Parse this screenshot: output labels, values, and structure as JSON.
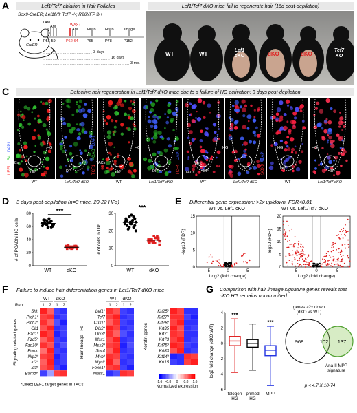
{
  "panel_letters": [
    "A",
    "C",
    "D",
    "E",
    "F",
    "G"
  ],
  "panelA": {
    "title_left": "Lef1/Tcf7 ablation in Hair Follicles",
    "title_right": "Lef1/Tcf7 dKO mice fail to regenerate hair (16d post-depilation)",
    "genotype": "Sox9-CreER; Lef1fl/fl; Tcf7 -/-; R26YFP fl/+",
    "mouse_label": "CreER",
    "tam_label": "TAM",
    "timeline_labels": [
      "TAM",
      "TAM",
      "WAX+",
      "TAM",
      "Histo",
      "Histo",
      "Image"
    ],
    "timeline_days": [
      "P55-59",
      "P62-64",
      "P65",
      "P78",
      "P152"
    ],
    "durations": [
      "3 days",
      "16 days",
      "3 mo."
    ],
    "mice": [
      "WT",
      "WT",
      "Lef1 cKO",
      "dKO",
      "dKO",
      "Tcf7 KO"
    ],
    "mice_colors": [
      "#ffffff",
      "#ffffff",
      "#ffffff",
      "#e02020",
      "#e02020",
      "#ffffff"
    ]
  },
  "panelC": {
    "title": "Defective hair regeneration in Lef1/Tcf7 dKO mice due to a failure of HG activation: 3 days post-depilation",
    "stain_labels": [
      {
        "text": "LEF1",
        "color": "#ff3030"
      },
      {
        "text": "B4",
        "color": "#40d040"
      },
      {
        "text": "DAPI",
        "color": "#4060ff"
      },
      {
        "text": "TCF1",
        "color": "#ff3030"
      },
      {
        "text": "PCAD",
        "color": "#40d040"
      },
      {
        "text": "DAPI",
        "color": "#4060ff"
      },
      {
        "text": "TCF4",
        "color": "#ff3030"
      },
      {
        "text": "DAPI",
        "color": "#4060ff"
      },
      {
        "text": "SOX9",
        "color": "#ff3030"
      },
      {
        "text": "DAPI",
        "color": "#4060ff"
      }
    ],
    "image_annotations": [
      "TACs",
      "DP",
      "HG",
      "DP",
      "TACs",
      "DP",
      "HG",
      "DP",
      "ORS",
      "DP",
      "TACs",
      "HG",
      "DP",
      "HG",
      "DP",
      "HG",
      "DP"
    ],
    "captions": [
      "WT",
      "Lef1/Tcf7 dKO",
      "WT",
      "Lef1/Tcf7 dKO",
      "WT",
      "Lef1/Tcf7 dKO",
      "WT",
      "Lef1/Tcf7 dKO"
    ]
  },
  "panelD": {
    "title": "3 days post-depilation (n=3 mice, 20-22 HFs)",
    "significance": "***",
    "plot1_ylabel": "# of PCADhi HG cells",
    "plot2_ylabel": "# of cells in DP",
    "plot1_yticks": [
      "0",
      "20",
      "40",
      "60",
      "80"
    ],
    "plot2_yticks": [
      "0",
      "10",
      "20",
      "30"
    ],
    "groups": [
      "WT",
      "dKO"
    ]
  },
  "panelE": {
    "title": "Differential gene expression: >2x up/down, FDR<0.01",
    "left_title": "WT vs. Lef1 cKO",
    "right_title": "WT vs. Lef1/Tcf7 dKO",
    "ylabel": "-log10 (FDR)",
    "xlabel": "Log2 (fold change)",
    "left_yticks": [
      "0",
      "5",
      "10",
      "15"
    ],
    "right_yticks": [
      "0",
      "5",
      "10",
      "15",
      "20"
    ],
    "xticks": [
      "-5",
      "0",
      "5"
    ]
  },
  "panelF": {
    "title": "Failure to induce hair differentiation genes in Lef1/Tcf7 dKO mice",
    "col_headers": [
      "WT",
      "dKO"
    ],
    "rep_label": "Rep:",
    "reps": [
      "1",
      "2",
      "1",
      "2"
    ],
    "group1_label": "Signaling related genes",
    "group1_genes": [
      "Shh",
      "Ptch1*",
      "Ptch2*",
      "Gli1",
      "Fzd1*",
      "Fzd5*",
      "Fzd10*",
      "Porcn",
      "Nrp2*",
      "Id2*",
      "Id3*",
      "Bambi*"
    ],
    "group2_label": "Hair lineage TFs",
    "group2_genes": [
      "Lef1*",
      "Tcf7",
      "Cux1*",
      "Dlx2*",
      "Dlx3*",
      "Msx1",
      "Msx2*",
      "Sox4",
      "Myb*",
      "Mycl*",
      "Foxe1*",
      "Nfatc1"
    ],
    "group3_label": "Keratin genes",
    "group3_genes": [
      "Krt25*",
      "Krt27*",
      "Krt28*",
      "Krt35",
      "Krt71",
      "Krt73",
      "Krt75*",
      "Krt83",
      "Krt14*",
      "Krt15"
    ],
    "footnote": "*Direct LEF1 target genes in TACs",
    "colorbar_ticks": [
      "-1.6",
      "-0.8",
      "0",
      "0.8",
      "1.6"
    ],
    "colorbar_label": "Normalized expression"
  },
  "panelG": {
    "title": "Comparison with hair lineage signature genes reveals that dKO HG remains uncommitted",
    "ylabel": "log2 fold change (dKO:WT)",
    "yticks": [
      "-6",
      "-4",
      "-2",
      "0",
      "2",
      "4"
    ],
    "categories": [
      "telogen HG",
      "primed HG",
      "MPP"
    ],
    "significance": [
      "***",
      "",
      "***"
    ],
    "venn_left_label": "genes >2x down (dKO vs WT)",
    "venn_right_label": "Ana-II MPP signature",
    "venn_counts": [
      "968",
      "102",
      "137"
    ],
    "pvalue": "p < 4.7 X 10-74"
  },
  "chart_data": [
    {
      "type": "scatter",
      "title": "",
      "ylabel": "# of PCADhi HG cells",
      "categories": [
        "WT",
        "dKO"
      ],
      "ylim": [
        0,
        80
      ],
      "series": [
        {
          "name": "WT",
          "values": [
            65,
            62,
            68,
            70,
            58,
            60,
            66,
            72,
            63,
            64,
            67,
            61,
            69,
            59,
            64,
            66,
            62,
            70,
            65,
            63
          ]
        },
        {
          "name": "dKO",
          "values": [
            28,
            27,
            30,
            26,
            29,
            28,
            31,
            27,
            26,
            29,
            28,
            30,
            27,
            28,
            29,
            26,
            30,
            28,
            27,
            29
          ]
        }
      ]
    },
    {
      "type": "scatter",
      "title": "",
      "ylabel": "# of cells in DP",
      "categories": [
        "WT",
        "dKO"
      ],
      "ylim": [
        0,
        30
      ],
      "series": [
        {
          "name": "WT",
          "values": [
            25,
            22,
            28,
            26,
            24,
            27,
            23,
            29,
            25,
            21,
            26,
            24,
            28,
            22,
            27,
            25,
            23,
            26,
            24,
            20
          ]
        },
        {
          "name": "dKO",
          "values": [
            15,
            14,
            16,
            13,
            17,
            15,
            14,
            16,
            12,
            15,
            16,
            14,
            13,
            17,
            15,
            14,
            16,
            15,
            13,
            14
          ]
        }
      ]
    },
    {
      "type": "box",
      "title": "",
      "ylabel": "log2 fold change (dKO:WT)",
      "categories": [
        "telogen HG",
        "primed HG",
        "MPP"
      ],
      "ylim": [
        -6,
        4
      ],
      "series": [
        {
          "name": "telogen HG",
          "values": {
            "min": -3.8,
            "q1": -0.3,
            "median": 0.3,
            "q3": 0.9,
            "max": 3.2
          }
        },
        {
          "name": "primed HG",
          "values": {
            "min": -3.5,
            "q1": -0.5,
            "median": 0.0,
            "q3": 0.5,
            "max": 2.5
          }
        },
        {
          "name": "MPP",
          "values": {
            "min": -5.5,
            "q1": -1.6,
            "median": -0.9,
            "q3": -0.3,
            "max": 2.2
          }
        }
      ]
    },
    {
      "type": "heatmap",
      "title": "",
      "categories": [
        "WT 1",
        "WT 2",
        "dKO 1",
        "dKO 2"
      ],
      "series": [
        {
          "name": "Signaling related genes",
          "values": [
            [
              1.4,
              1.0,
              -1.2,
              -1.3
            ],
            [
              1.2,
              1.3,
              -1.3,
              -1.2
            ],
            [
              1.3,
              1.0,
              -1.1,
              -1.4
            ],
            [
              1.1,
              1.4,
              -1.3,
              -1.2
            ],
            [
              1.4,
              1.2,
              -1.4,
              -1.2
            ],
            [
              1.0,
              1.3,
              -1.2,
              -1.3
            ],
            [
              1.3,
              1.1,
              -1.3,
              -1.1
            ],
            [
              0.9,
              1.4,
              -1.2,
              -1.3
            ],
            [
              1.2,
              1.3,
              -1.4,
              -1.2
            ],
            [
              1.0,
              1.4,
              -1.3,
              -1.2
            ],
            [
              1.1,
              1.3,
              -1.2,
              -1.4
            ],
            [
              -1.2,
              -0.6,
              1.2,
              1.3
            ]
          ]
        },
        {
          "name": "Hair lineage TFs",
          "values": [
            [
              1.3,
              1.1,
              -1.2,
              -1.3
            ],
            [
              1.2,
              1.4,
              -1.3,
              -1.2
            ],
            [
              1.0,
              1.3,
              -1.2,
              -1.3
            ],
            [
              1.4,
              1.2,
              -1.3,
              -1.2
            ],
            [
              1.3,
              1.0,
              -1.1,
              -1.3
            ],
            [
              1.1,
              1.4,
              -1.3,
              -1.2
            ],
            [
              1.2,
              1.3,
              -1.4,
              -1.1
            ],
            [
              1.0,
              1.4,
              -1.3,
              -1.2
            ],
            [
              1.3,
              1.2,
              -1.2,
              -1.3
            ],
            [
              1.4,
              1.0,
              -1.3,
              -1.2
            ],
            [
              1.2,
              1.3,
              -1.2,
              -1.4
            ],
            [
              -1.3,
              -1.1,
              1.3,
              1.2
            ]
          ]
        },
        {
          "name": "Keratin genes",
          "values": [
            [
              1.4,
              1.2,
              -1.3,
              -1.3
            ],
            [
              1.3,
              1.3,
              -1.2,
              -1.4
            ],
            [
              1.2,
              1.4,
              -1.3,
              -1.3
            ],
            [
              1.4,
              1.1,
              -1.3,
              -1.2
            ],
            [
              1.3,
              1.2,
              -1.3,
              -1.3
            ],
            [
              1.2,
              1.4,
              -1.3,
              -1.2
            ],
            [
              1.4,
              1.3,
              -1.2,
              -1.3
            ],
            [
              1.1,
              1.4,
              -1.3,
              -1.2
            ],
            [
              -1.4,
              -1.3,
              1.3,
              1.2
            ],
            [
              -1.2,
              -1.3,
              1.2,
              1.4
            ]
          ]
        }
      ]
    }
  ]
}
